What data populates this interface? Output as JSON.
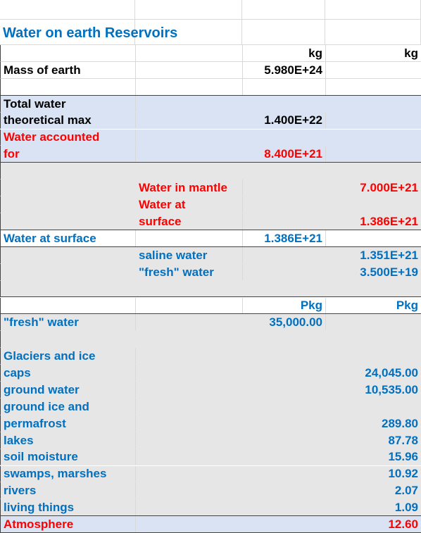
{
  "sheet": {
    "rows": [
      [
        null,
        null,
        null,
        null
      ],
      [
        "Water on earth Reservoirs",
        null,
        null,
        null
      ],
      [
        null,
        null,
        "kg",
        "kg"
      ],
      [
        "Mass of earth",
        null,
        "5.980E+24",
        null
      ],
      [
        null,
        null,
        null,
        null
      ],
      [
        "Total water",
        null,
        null,
        null
      ],
      [
        "theoretical max",
        null,
        "1.400E+22",
        null
      ],
      [
        "Water accounted",
        null,
        null,
        null
      ],
      [
        "for",
        null,
        "8.400E+21",
        null
      ],
      [
        null,
        null,
        null,
        null
      ],
      [
        null,
        "Water in mantle",
        null,
        "7.000E+21"
      ],
      [
        null,
        "Water at",
        null,
        null
      ],
      [
        null,
        "surface",
        null,
        "1.386E+21"
      ],
      [
        "Water at surface",
        null,
        "1.386E+21",
        null
      ],
      [
        null,
        "saline water",
        null,
        "1.351E+21"
      ],
      [
        null,
        "\"fresh\" water",
        null,
        "3.500E+19"
      ],
      [
        null,
        null,
        null,
        null
      ],
      [
        null,
        null,
        "Pkg",
        "Pkg"
      ],
      [
        "\"fresh\" water",
        null,
        "35,000.00",
        null
      ],
      [
        null,
        null,
        null,
        null
      ],
      [
        "Glaciers and ice",
        null,
        null,
        null
      ],
      [
        "caps",
        null,
        null,
        "24,045.00"
      ],
      [
        "ground water",
        null,
        null,
        "10,535.00"
      ],
      [
        "ground ice and",
        null,
        null,
        null
      ],
      [
        "permafrost",
        null,
        null,
        "289.80"
      ],
      [
        "lakes",
        null,
        null,
        "87.78"
      ],
      [
        "soil moisture",
        null,
        null,
        "15.96"
      ],
      [
        "swamps, marshes",
        null,
        null,
        "10.92"
      ],
      [
        "rivers",
        null,
        null,
        "2.07"
      ],
      [
        "living things",
        null,
        null,
        "1.09"
      ],
      [
        "Atmosphere",
        null,
        null,
        "12.60"
      ]
    ]
  }
}
